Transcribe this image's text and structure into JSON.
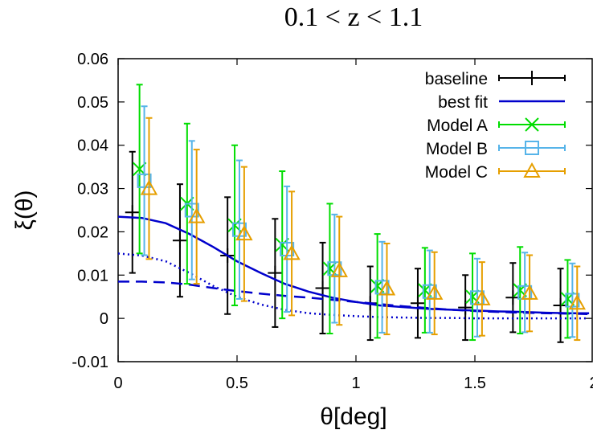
{
  "chart_data": {
    "type": "scatter",
    "title": "0.1 < z < 1.1",
    "xlabel": "θ[deg]",
    "ylabel": "ξ(θ)",
    "xlim": [
      0,
      2
    ],
    "ylim": [
      -0.01,
      0.06
    ],
    "xticks": [
      0,
      0.5,
      1,
      1.5,
      2
    ],
    "xtick_labels": [
      "0",
      "0.5",
      "1",
      "1.5",
      "2"
    ],
    "yticks": [
      -0.01,
      0,
      0.01,
      0.02,
      0.03,
      0.04,
      0.05,
      0.06
    ],
    "ytick_labels": [
      "-0.01",
      "0",
      "0.01",
      "0.02",
      "0.03",
      "0.04",
      "0.05",
      "0.06"
    ],
    "grid": false,
    "legend_position": "top-right",
    "series": [
      {
        "name": "baseline",
        "kind": "errorbar",
        "marker": "plus",
        "color": "#000000",
        "x": [
          0.06,
          0.26,
          0.46,
          0.66,
          0.86,
          1.06,
          1.26,
          1.46,
          1.66,
          1.86
        ],
        "y": [
          0.0245,
          0.018,
          0.0145,
          0.0105,
          0.007,
          0.0035,
          0.0035,
          0.0025,
          0.0048,
          0.003
        ],
        "yerr": [
          0.014,
          0.013,
          0.0135,
          0.0125,
          0.0105,
          0.0085,
          0.008,
          0.0075,
          0.008,
          0.0085
        ]
      },
      {
        "name": "best fit",
        "kind": "line",
        "style": "solid",
        "color": "#0000cc",
        "x": [
          0,
          0.1,
          0.2,
          0.3,
          0.4,
          0.5,
          0.6,
          0.7,
          0.8,
          0.9,
          1.0,
          1.1,
          1.2,
          1.3,
          1.4,
          1.5,
          1.6,
          1.7,
          1.8,
          1.9,
          1.98
        ],
        "y": [
          0.0235,
          0.0232,
          0.022,
          0.0195,
          0.0165,
          0.0132,
          0.0105,
          0.008,
          0.0062,
          0.0048,
          0.0038,
          0.003,
          0.0026,
          0.0022,
          0.002,
          0.0018,
          0.0016,
          0.0015,
          0.0013,
          0.0012,
          0.0012
        ]
      },
      {
        "name": "",
        "kind": "line",
        "style": "dashed",
        "color": "#0000cc",
        "x": [
          0,
          0.1,
          0.2,
          0.3,
          0.4,
          0.5,
          0.6,
          0.7,
          0.8,
          0.9,
          1.0,
          1.1,
          1.2,
          1.3,
          1.4,
          1.5,
          1.6,
          1.7,
          1.8,
          1.9,
          1.98
        ],
        "y": [
          0.0085,
          0.0085,
          0.0083,
          0.0078,
          0.007,
          0.0063,
          0.0057,
          0.0052,
          0.0048,
          0.0043,
          0.0038,
          0.0033,
          0.0028,
          0.0024,
          0.002,
          0.0017,
          0.0015,
          0.0013,
          0.0012,
          0.0011,
          0.001
        ]
      },
      {
        "name": "",
        "kind": "line",
        "style": "dotted",
        "color": "#0000cc",
        "x": [
          0,
          0.1,
          0.2,
          0.3,
          0.4,
          0.5,
          0.6,
          0.7,
          0.8,
          0.9,
          1.0,
          1.1,
          1.2,
          1.3,
          1.4,
          1.5,
          1.6,
          1.7,
          1.8,
          1.9,
          1.98
        ],
        "y": [
          0.015,
          0.0145,
          0.0132,
          0.0105,
          0.0075,
          0.005,
          0.0032,
          0.002,
          0.0012,
          0.0008,
          0.0005,
          0.0003,
          0.0002,
          0.0001,
          0.0001,
          0.0,
          0.0,
          0.0,
          0.0,
          0.0,
          0.0
        ]
      },
      {
        "name": "Model A",
        "kind": "errorbar",
        "marker": "x",
        "color": "#00dd00",
        "x": [
          0.09,
          0.29,
          0.49,
          0.69,
          0.89,
          1.09,
          1.29,
          1.49,
          1.69,
          1.89
        ],
        "y": [
          0.0345,
          0.0265,
          0.0215,
          0.017,
          0.0115,
          0.0075,
          0.0065,
          0.005,
          0.0065,
          0.0045
        ],
        "yerr": [
          0.0195,
          0.0185,
          0.0185,
          0.017,
          0.015,
          0.012,
          0.0098,
          0.01,
          0.01,
          0.009
        ]
      },
      {
        "name": "Model B",
        "kind": "errorbar",
        "marker": "square",
        "color": "#56b4e9",
        "x": [
          0.11,
          0.31,
          0.51,
          0.71,
          0.91,
          1.11,
          1.31,
          1.51,
          1.71,
          1.91
        ],
        "y": [
          0.0318,
          0.025,
          0.0205,
          0.016,
          0.0115,
          0.0072,
          0.0062,
          0.0048,
          0.006,
          0.0042
        ],
        "yerr": [
          0.0172,
          0.016,
          0.016,
          0.0145,
          0.0125,
          0.0105,
          0.0095,
          0.009,
          0.0092,
          0.0085
        ]
      },
      {
        "name": "Model C",
        "kind": "errorbar",
        "marker": "triangle",
        "color": "#e69f00",
        "x": [
          0.13,
          0.33,
          0.53,
          0.73,
          0.93,
          1.13,
          1.33,
          1.53,
          1.73,
          1.93
        ],
        "y": [
          0.03,
          0.0235,
          0.0195,
          0.015,
          0.011,
          0.0068,
          0.0058,
          0.0045,
          0.0058,
          0.0035
        ],
        "yerr": [
          0.0163,
          0.0155,
          0.0155,
          0.0143,
          0.0125,
          0.0105,
          0.0095,
          0.0085,
          0.0088,
          0.0085
        ]
      }
    ]
  }
}
